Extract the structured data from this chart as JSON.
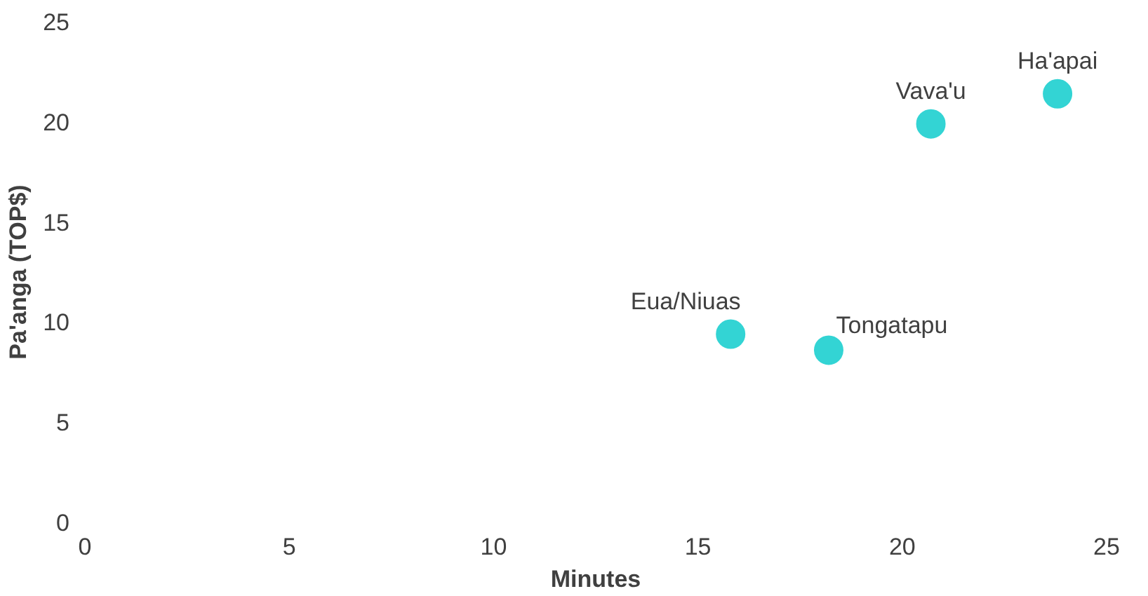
{
  "chart_data": {
    "type": "scatter",
    "xlabel": "Minutes",
    "ylabel": "Pa'anga (TOP$)",
    "xlim": [
      0,
      25
    ],
    "xticks": [
      0,
      5,
      10,
      15,
      20,
      25
    ],
    "ylim": [
      0,
      25
    ],
    "yticks": [
      0,
      5,
      10,
      15,
      20,
      25
    ],
    "marker": "circle",
    "series": [
      {
        "name": "Eua/Niuas",
        "color": "#33d4d4",
        "x": [
          15.8
        ],
        "values": [
          9.4
        ]
      },
      {
        "name": "Tongatapu",
        "color": "#33d4d4",
        "x": [
          18.2
        ],
        "values": [
          8.6
        ]
      },
      {
        "name": "Vava'u",
        "color": "#33d4d4",
        "x": [
          20.7
        ],
        "values": [
          19.9
        ]
      },
      {
        "name": "Ha'apai",
        "color": "#33d4d4",
        "x": [
          23.8
        ],
        "values": [
          21.4
        ]
      }
    ]
  }
}
